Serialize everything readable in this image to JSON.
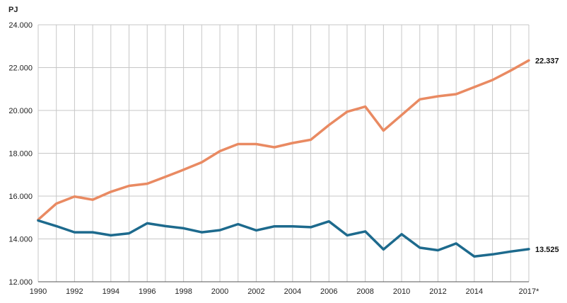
{
  "chart_data": {
    "type": "line",
    "ylabel": "PJ",
    "ylim": [
      12000,
      24000
    ],
    "xlim": [
      1990,
      2017
    ],
    "yticks": [
      {
        "value": 12000,
        "label": "12.000"
      },
      {
        "value": 14000,
        "label": "14.000"
      },
      {
        "value": 16000,
        "label": "16.000"
      },
      {
        "value": 18000,
        "label": "18.000"
      },
      {
        "value": 20000,
        "label": "20.000"
      },
      {
        "value": 22000,
        "label": "22.000"
      },
      {
        "value": 24000,
        "label": "24.000"
      }
    ],
    "xticks": [
      {
        "value": 1990,
        "label": "1990"
      },
      {
        "value": 1992,
        "label": "1992"
      },
      {
        "value": 1994,
        "label": "1994"
      },
      {
        "value": 1996,
        "label": "1996"
      },
      {
        "value": 1998,
        "label": "1998"
      },
      {
        "value": 2000,
        "label": "2000"
      },
      {
        "value": 2002,
        "label": "2002"
      },
      {
        "value": 2004,
        "label": "2004"
      },
      {
        "value": 2006,
        "label": "2006"
      },
      {
        "value": 2008,
        "label": "2008"
      },
      {
        "value": 2010,
        "label": "2010"
      },
      {
        "value": 2012,
        "label": "2012"
      },
      {
        "value": 2014,
        "label": "2014"
      },
      {
        "value": 2017,
        "label": "2017*"
      }
    ],
    "x": [
      1990,
      1991,
      1992,
      1993,
      1994,
      1995,
      1996,
      1997,
      1998,
      1999,
      2000,
      2001,
      2002,
      2003,
      2004,
      2005,
      2006,
      2007,
      2008,
      2009,
      2010,
      2011,
      2012,
      2013,
      2014,
      2015,
      2016,
      2017
    ],
    "grid": {
      "vertical": true,
      "horizontal": true
    },
    "series": [
      {
        "key": "orange",
        "color": "#e98a62",
        "values": [
          14900,
          15650,
          15980,
          15830,
          16200,
          16480,
          16580,
          16900,
          17230,
          17580,
          18100,
          18430,
          18430,
          18280,
          18480,
          18630,
          19320,
          19940,
          20180,
          19060,
          19790,
          20520,
          20660,
          20760,
          21090,
          21420,
          21860,
          22337
        ],
        "end_label": "22.337"
      },
      {
        "key": "blue",
        "color": "#1d6a8d",
        "values": [
          14860,
          14600,
          14310,
          14310,
          14170,
          14260,
          14730,
          14600,
          14500,
          14310,
          14410,
          14690,
          14400,
          14590,
          14590,
          14550,
          14820,
          14170,
          14350,
          13510,
          14220,
          13590,
          13470,
          13790,
          13180,
          13280,
          13410,
          13525
        ],
        "end_label": "13.525"
      }
    ]
  }
}
